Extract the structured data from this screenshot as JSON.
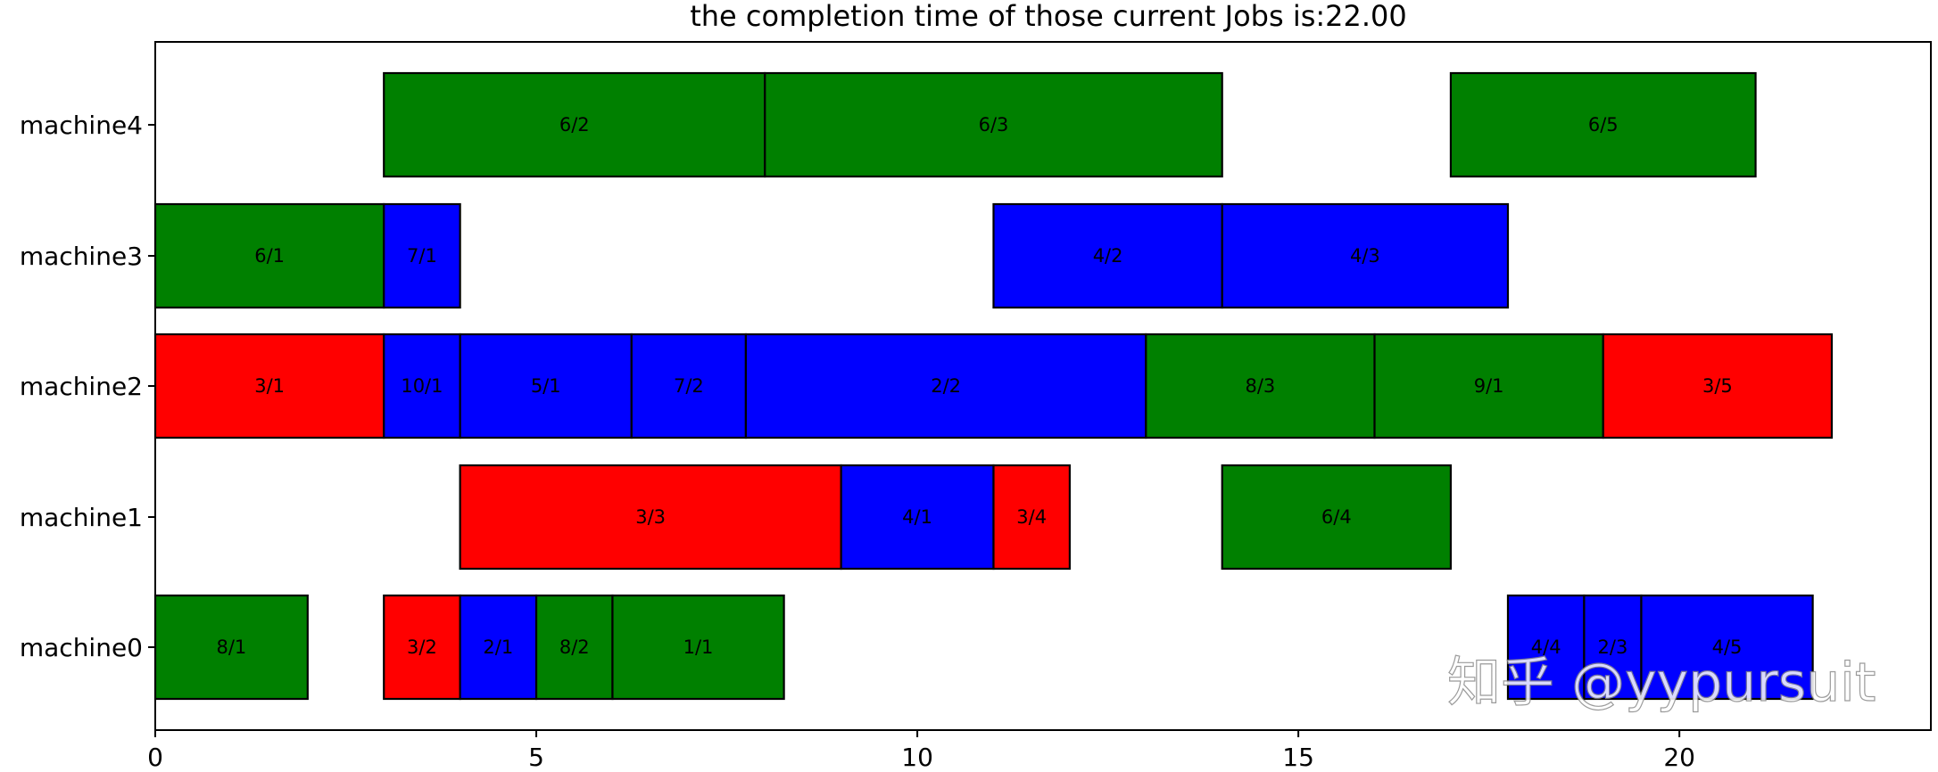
{
  "chart_data": {
    "type": "gantt",
    "title": "the completion time of those current Jobs is:22.00",
    "xlim": [
      0,
      23.3
    ],
    "x_ticks": [
      0,
      5,
      10,
      15,
      20
    ],
    "machines": [
      "machine0",
      "machine1",
      "machine2",
      "machine3",
      "machine4"
    ],
    "colors": {
      "red": "#ff0000",
      "blue": "#0000ff",
      "green": "#008000"
    },
    "tasks": [
      {
        "machine": "machine4",
        "label": "6/2",
        "start": 3.0,
        "end": 8.0,
        "color": "green"
      },
      {
        "machine": "machine4",
        "label": "6/3",
        "start": 8.0,
        "end": 14.0,
        "color": "green"
      },
      {
        "machine": "machine4",
        "label": "6/5",
        "start": 17.0,
        "end": 21.0,
        "color": "green"
      },
      {
        "machine": "machine3",
        "label": "6/1",
        "start": 0.0,
        "end": 3.0,
        "color": "green"
      },
      {
        "machine": "machine3",
        "label": "7/1",
        "start": 3.0,
        "end": 4.0,
        "color": "blue"
      },
      {
        "machine": "machine3",
        "label": "4/2",
        "start": 11.0,
        "end": 14.0,
        "color": "blue"
      },
      {
        "machine": "machine3",
        "label": "4/3",
        "start": 14.0,
        "end": 17.75,
        "color": "blue"
      },
      {
        "machine": "machine2",
        "label": "3/1",
        "start": 0.0,
        "end": 3.0,
        "color": "red"
      },
      {
        "machine": "machine2",
        "label": "10/1",
        "start": 3.0,
        "end": 4.0,
        "color": "blue"
      },
      {
        "machine": "machine2",
        "label": "5/1",
        "start": 4.0,
        "end": 6.25,
        "color": "blue"
      },
      {
        "machine": "machine2",
        "label": "7/2",
        "start": 6.25,
        "end": 7.75,
        "color": "blue"
      },
      {
        "machine": "machine2",
        "label": "2/2",
        "start": 7.75,
        "end": 13.0,
        "color": "blue"
      },
      {
        "machine": "machine2",
        "label": "8/3",
        "start": 13.0,
        "end": 16.0,
        "color": "green"
      },
      {
        "machine": "machine2",
        "label": "9/1",
        "start": 16.0,
        "end": 19.0,
        "color": "green"
      },
      {
        "machine": "machine2",
        "label": "3/5",
        "start": 19.0,
        "end": 22.0,
        "color": "red"
      },
      {
        "machine": "machine1",
        "label": "3/3",
        "start": 4.0,
        "end": 9.0,
        "color": "red"
      },
      {
        "machine": "machine1",
        "label": "4/1",
        "start": 9.0,
        "end": 11.0,
        "color": "blue"
      },
      {
        "machine": "machine1",
        "label": "3/4",
        "start": 11.0,
        "end": 12.0,
        "color": "red"
      },
      {
        "machine": "machine1",
        "label": "6/4",
        "start": 14.0,
        "end": 17.0,
        "color": "green"
      },
      {
        "machine": "machine0",
        "label": "8/1",
        "start": 0.0,
        "end": 2.0,
        "color": "green"
      },
      {
        "machine": "machine0",
        "label": "3/2",
        "start": 3.0,
        "end": 4.0,
        "color": "red"
      },
      {
        "machine": "machine0",
        "label": "2/1",
        "start": 4.0,
        "end": 5.0,
        "color": "blue"
      },
      {
        "machine": "machine0",
        "label": "8/2",
        "start": 5.0,
        "end": 6.0,
        "color": "green"
      },
      {
        "machine": "machine0",
        "label": "1/1",
        "start": 6.0,
        "end": 8.25,
        "color": "green"
      },
      {
        "machine": "machine0",
        "label": "4/4",
        "start": 17.75,
        "end": 18.75,
        "color": "blue"
      },
      {
        "machine": "machine0",
        "label": "2/3",
        "start": 18.75,
        "end": 19.5,
        "color": "blue"
      },
      {
        "machine": "machine0",
        "label": "4/5",
        "start": 19.5,
        "end": 21.75,
        "color": "blue"
      }
    ],
    "grid": false
  },
  "watermark": "知乎 @yypursuit"
}
